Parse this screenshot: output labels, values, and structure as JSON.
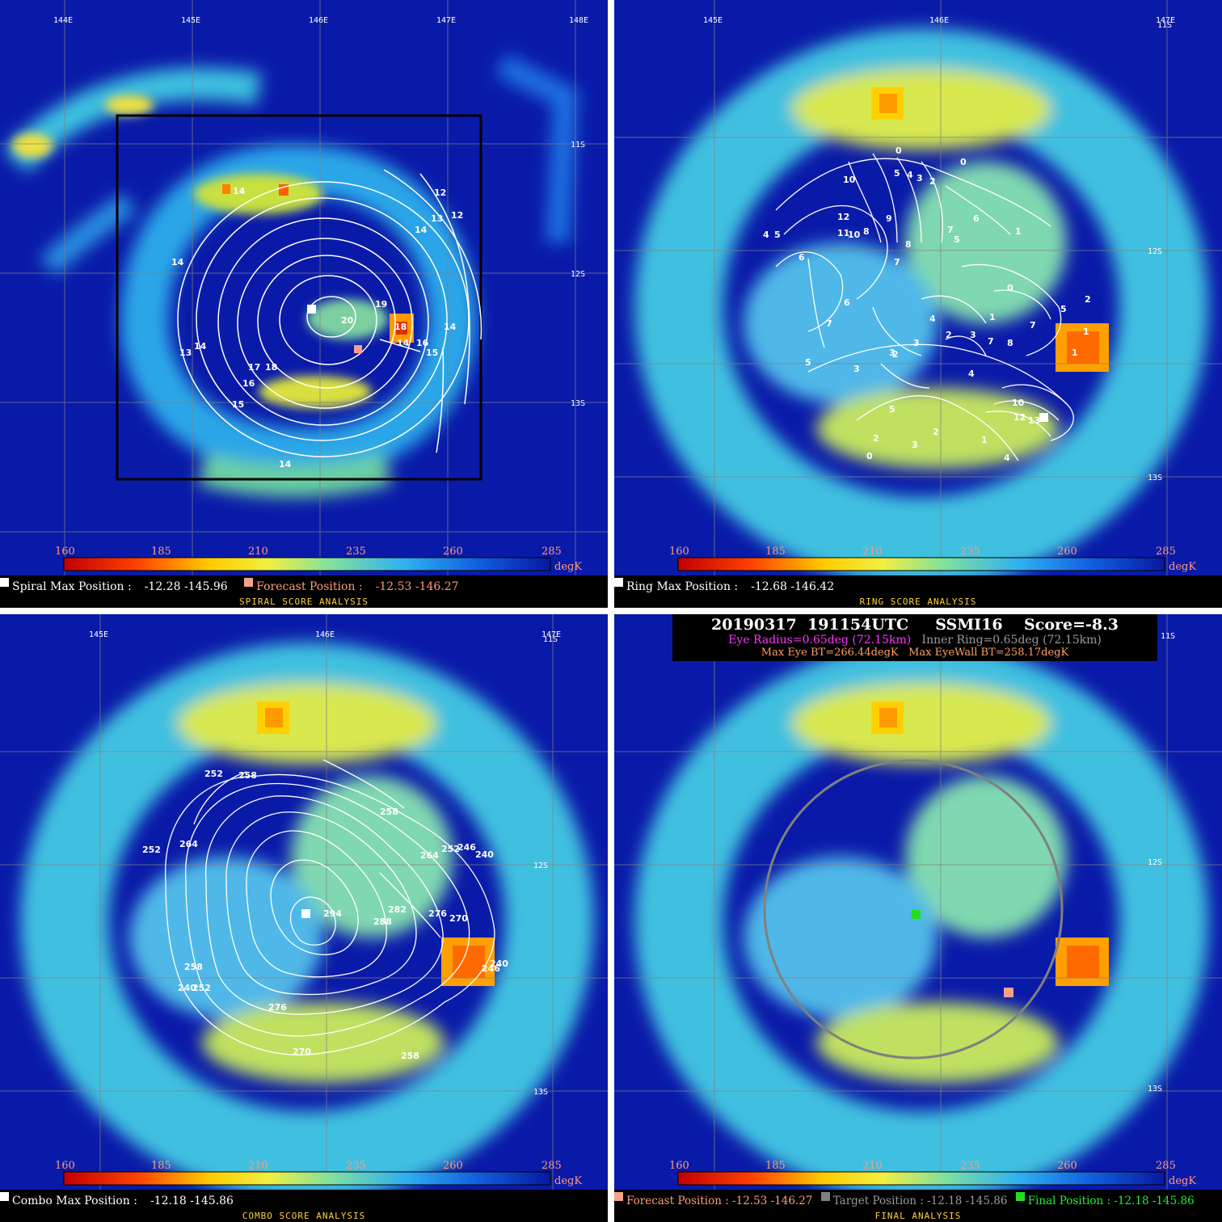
{
  "colorbar": {
    "ticks": [
      "160",
      "185",
      "210",
      "235",
      "260",
      "285"
    ],
    "unit": "degK"
  },
  "spiral": {
    "lon_labels": [
      "144E",
      "145E",
      "146E",
      "147E",
      "148E"
    ],
    "lat_labels": [
      "11S",
      "12S",
      "13S"
    ],
    "contour_labels": [
      "14",
      "14",
      "12",
      "13",
      "12",
      "14",
      "14",
      "19",
      "20",
      "18",
      "14",
      "15",
      "16",
      "13",
      "14",
      "17",
      "18",
      "16",
      "15",
      "14"
    ],
    "max_label": "Spiral Max Position :",
    "max_value": "-12.28 -145.96",
    "forecast_label": "Forecast Position :",
    "forecast_value": "-12.53 -146.27",
    "title": "SPIRAL SCORE ANALYSIS"
  },
  "ring": {
    "lon_labels": [
      "145E",
      "146E",
      "147E"
    ],
    "lat_labels": [
      "11S",
      "12S",
      "13S"
    ],
    "contour_labels": [
      "10",
      "0",
      "5",
      "4",
      "3",
      "2",
      "0",
      "12",
      "9",
      "11",
      "10",
      "8",
      "4",
      "5",
      "6",
      "7",
      "5",
      "6",
      "7",
      "8",
      "1",
      "6",
      "7",
      "7",
      "0",
      "5",
      "2",
      "1",
      "3",
      "4",
      "2",
      "3",
      "7",
      "8",
      "1",
      "1",
      "3",
      "2",
      "5",
      "4",
      "5",
      "3",
      "10",
      "12",
      "13",
      "2",
      "0",
      "4",
      "3",
      "2",
      "1"
    ],
    "max_label": "Ring Max Position :",
    "max_value": "-12.68 -146.42",
    "title": "RING SCORE ANALYSIS"
  },
  "combo": {
    "lon_labels": [
      "145E",
      "146E",
      "147E"
    ],
    "lat_labels": [
      "11S",
      "12S",
      "13S"
    ],
    "contour_labels": [
      "252",
      "258",
      "264",
      "252",
      "258",
      "252",
      "246",
      "240",
      "264",
      "294",
      "288",
      "282",
      "276",
      "270",
      "258",
      "240",
      "252",
      "276",
      "270",
      "258",
      "240",
      "246"
    ],
    "max_label": "Combo Max Position :",
    "max_value": "-12.18 -145.86",
    "title": "COMBO SCORE ANALYSIS"
  },
  "final": {
    "lat_labels": [
      "11S",
      "12S",
      "13S"
    ],
    "header_line1": "20190317  191154UTC     SSMI16    Score=-8.3",
    "eye_radius": "Eye Radius=0.65deg (72.15km)",
    "inner_ring": "Inner Ring=0.65deg (72.15km)",
    "max_eye_bt": "Max Eye BT=266.44degK",
    "max_eyewall_bt": "Max EyeWall BT=258.17degK",
    "forecast_label": "Forecast Position :",
    "forecast_value": "-12.53 -146.27",
    "target_label": "Target Position :",
    "target_value": "-12.18 -145.86",
    "final_label": "Final Position :",
    "final_value": "-12.18 -145.86",
    "title": "FINAL ANALYSIS"
  },
  "colors": {
    "ocean": "#0a1aa8",
    "max_marker": "#ffffff",
    "forecast_marker": "#f4a08a",
    "target_marker": "#808080",
    "final_marker": "#22dd22"
  }
}
